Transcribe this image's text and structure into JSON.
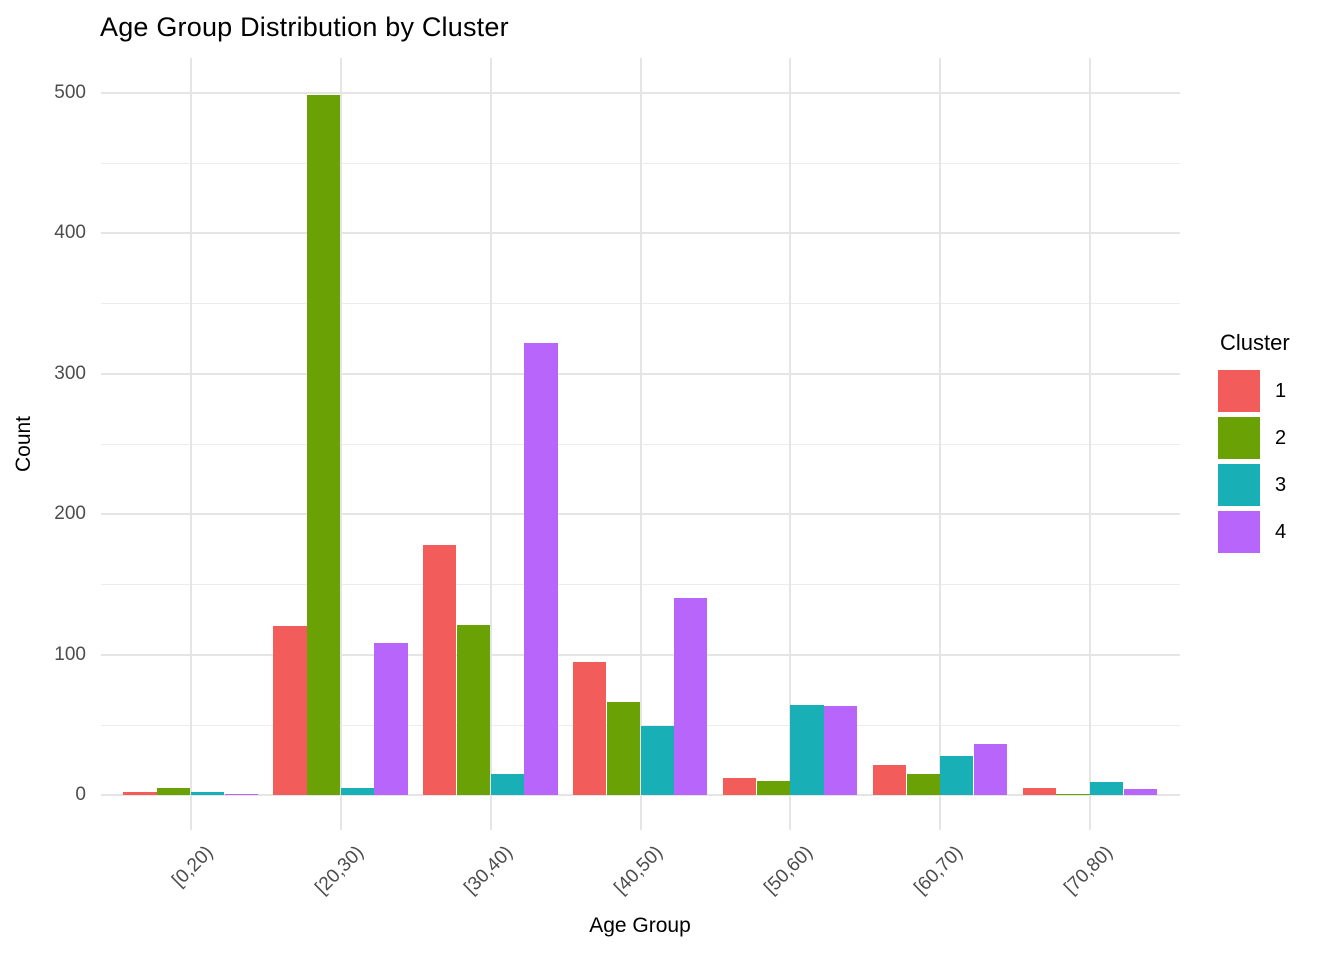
{
  "chart_data": {
    "type": "bar",
    "grouping": "dodged",
    "title": "Age Group Distribution by Cluster",
    "xlabel": "Age Group",
    "ylabel": "Count",
    "categories": [
      "[0,20)",
      "[20,30)",
      "[30,40)",
      "[40,50)",
      "[50,60)",
      "[60,70)",
      "[70,80)"
    ],
    "series": [
      {
        "name": "1",
        "color": "#F25D5B",
        "values": [
          2,
          120,
          178,
          95,
          12,
          21,
          5
        ]
      },
      {
        "name": "2",
        "color": "#6AA104",
        "values": [
          5,
          498,
          121,
          66,
          10,
          15,
          1
        ]
      },
      {
        "name": "3",
        "color": "#18B0B6",
        "values": [
          2,
          5,
          15,
          49,
          64,
          28,
          9
        ]
      },
      {
        "name": "4",
        "color": "#B765FB",
        "values": [
          1,
          108,
          322,
          140,
          63,
          36,
          4
        ]
      }
    ],
    "y_ticks": [
      0,
      100,
      200,
      300,
      400,
      500
    ],
    "y_minor_ticks": [
      50,
      150,
      250,
      350,
      450
    ],
    "ylim": [
      0,
      525
    ],
    "grid": true,
    "legend": {
      "title": "Cluster",
      "position": "right"
    },
    "colors": {
      "tick_label": "#4D4D4D",
      "grid_major": "#E5E5E5",
      "grid_minor": "#ECECEC",
      "background": "#FFFFFF"
    }
  }
}
